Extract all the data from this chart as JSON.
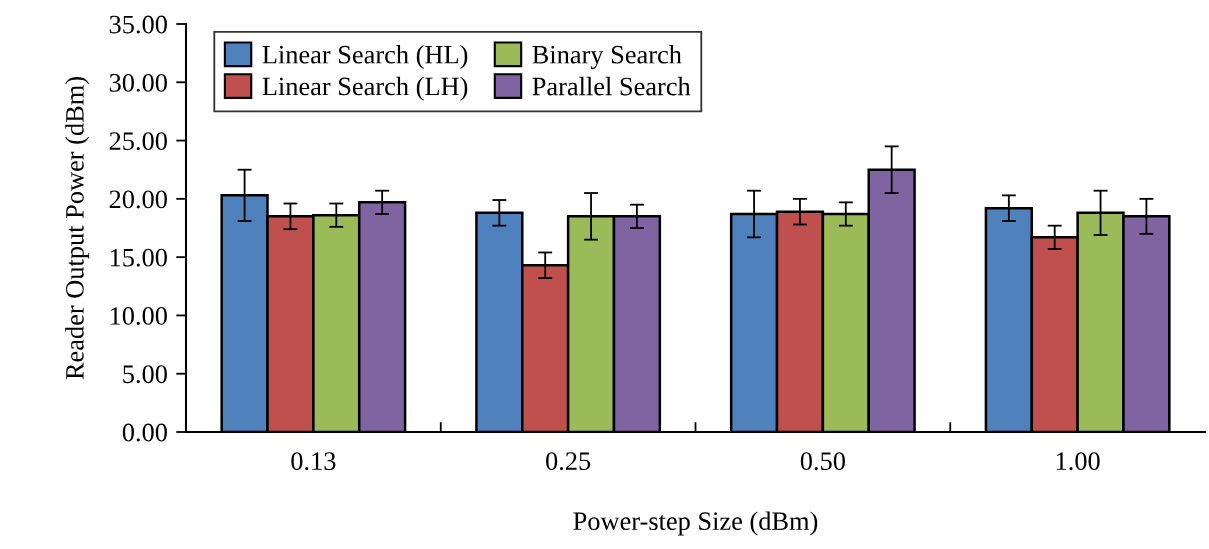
{
  "chart_data": {
    "type": "bar",
    "xlabel": "Power-step Size (dBm)",
    "ylabel": "Reader Output Power (dBm)",
    "categories": [
      "0.13",
      "0.25",
      "0.50",
      "1.00"
    ],
    "series": [
      {
        "name": "Linear Search (HL)",
        "color": "#4f81bd",
        "values": [
          20.3,
          18.8,
          18.7,
          19.2
        ],
        "errors": [
          2.2,
          1.1,
          2.0,
          1.1
        ]
      },
      {
        "name": "Linear Search (LH)",
        "color": "#c0504d",
        "values": [
          18.5,
          14.3,
          18.9,
          16.7
        ],
        "errors": [
          1.1,
          1.1,
          1.1,
          1.0
        ]
      },
      {
        "name": "Binary Search",
        "color": "#9bbb59",
        "values": [
          18.6,
          18.5,
          18.7,
          18.8
        ],
        "errors": [
          1.0,
          2.0,
          1.0,
          1.9
        ]
      },
      {
        "name": "Parallel Search",
        "color": "#8064a2",
        "values": [
          19.7,
          18.5,
          22.5,
          18.5
        ],
        "errors": [
          1.0,
          1.0,
          2.0,
          1.5
        ]
      }
    ],
    "ylim": [
      0,
      35
    ],
    "yticks": [
      {
        "value": 0,
        "label": "0.00"
      },
      {
        "value": 5,
        "label": "5.00"
      },
      {
        "value": 10,
        "label": "10.00"
      },
      {
        "value": 15,
        "label": "15.00"
      },
      {
        "value": 20,
        "label": "20.00"
      },
      {
        "value": 25,
        "label": "25.00"
      },
      {
        "value": 30,
        "label": "30.00"
      },
      {
        "value": 35,
        "label": "35.00"
      }
    ],
    "grid": false,
    "legend": "top left"
  }
}
